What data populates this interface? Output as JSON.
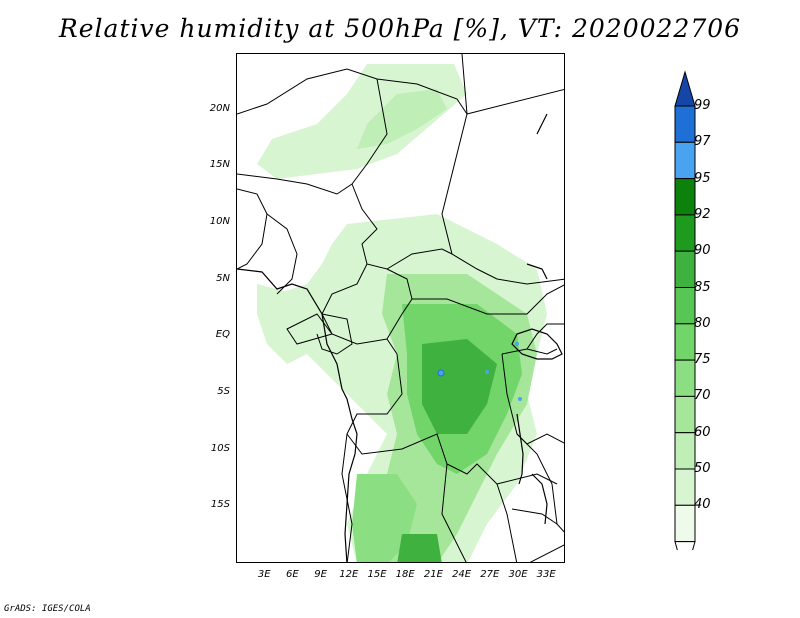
{
  "title": "Relative humidity at 500hPa [%], VT: 2020022706",
  "credit": "GrADS: IGES/COLA",
  "map": {
    "lat_labels": [
      "20N",
      "15N",
      "10N",
      "5N",
      "EQ",
      "5S",
      "10S",
      "15S"
    ],
    "lon_labels": [
      "3E",
      "6E",
      "9E",
      "12E",
      "15E",
      "18E",
      "21E",
      "24E",
      "27E",
      "30E",
      "33E"
    ],
    "lat_values": [
      20,
      15,
      10,
      5,
      0,
      -5,
      -10,
      -15
    ],
    "lon_values": [
      3,
      6,
      9,
      12,
      15,
      18,
      21,
      24,
      27,
      30,
      33
    ],
    "lon_range": [
      0,
      35
    ],
    "lat_range": [
      -20,
      25
    ]
  },
  "colorbar": {
    "levels": [
      "40",
      "50",
      "60",
      "70",
      "75",
      "80",
      "85",
      "90",
      "92",
      "95",
      "97",
      "99"
    ],
    "colors": [
      "#ffffff",
      "#eefaea",
      "#d8f5d2",
      "#bfeeb6",
      "#a6e69b",
      "#8cde82",
      "#72d56a",
      "#58c655",
      "#3fb13f",
      "#1e9a1e",
      "#0c820c",
      "#4aa3f0",
      "#1e6fd6",
      "#1446a8"
    ]
  }
}
